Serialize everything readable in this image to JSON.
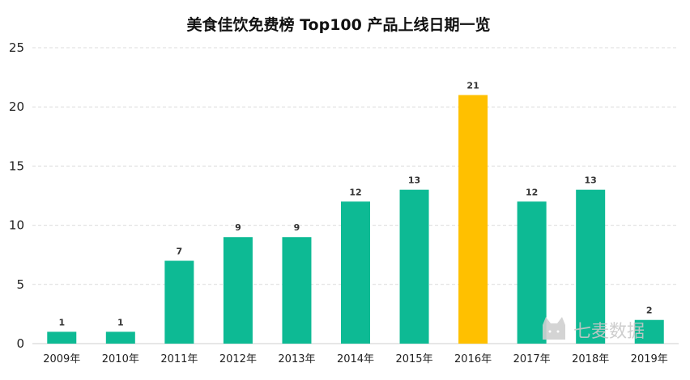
{
  "chart_data": {
    "type": "bar",
    "title": "美食佳饮免费榜 Top100 产品上线日期一览",
    "categories": [
      "2009年",
      "2010年",
      "2011年",
      "2012年",
      "2013年",
      "2014年",
      "2015年",
      "2016年",
      "2017年",
      "2018年",
      "2019年"
    ],
    "values": [
      1,
      1,
      7,
      9,
      9,
      12,
      13,
      21,
      12,
      13,
      2
    ],
    "ylim": [
      0,
      25
    ],
    "yticks": [
      0,
      5,
      10,
      15,
      20,
      25
    ],
    "grid": true,
    "colors": {
      "default": "#0dba94",
      "highlight": "#ffc000",
      "highlight_category": "2016年"
    }
  },
  "watermark": {
    "text": "七麦数据",
    "icon": "cat-icon"
  }
}
